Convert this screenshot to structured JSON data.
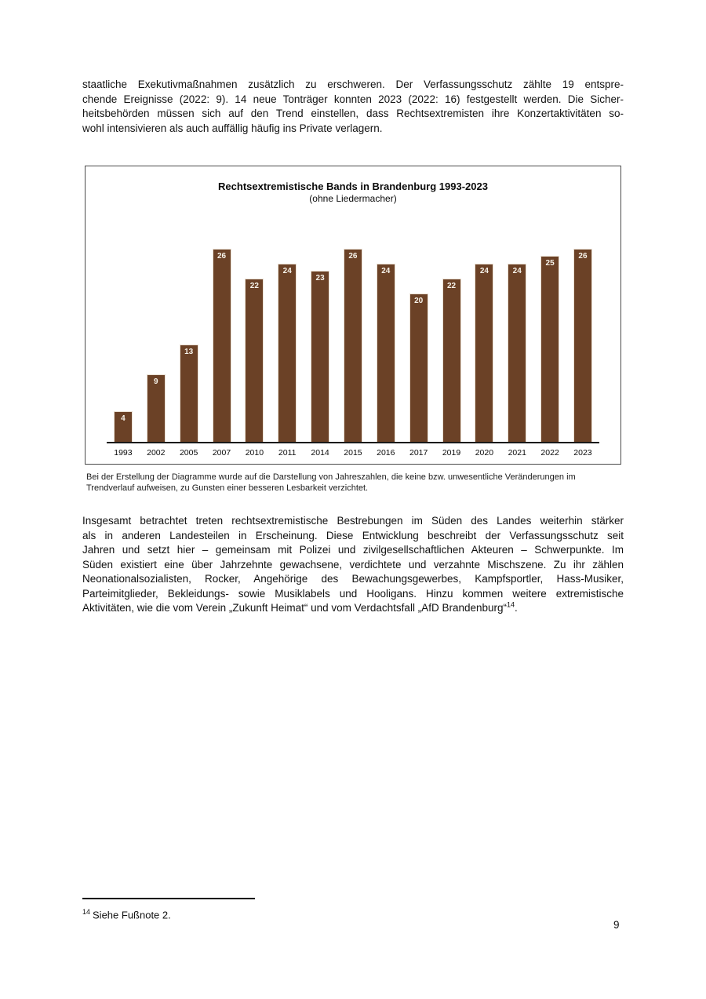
{
  "page": {
    "number": "9",
    "background": "#ffffff"
  },
  "paragraph1": {
    "lines": [
      {
        "pre": "staatliche Exekutivmaßnahmen zusätzlich zu erschweren. Der Verfassungsschutz zählte 19 entspre-"
      },
      {
        "pre": "chende Ereignisse (2022: 9). 14 neue Tonträger konnten 2023 (2022: 16) festgestellt werden. Die Sicher-"
      },
      {
        "pre": "heitsbehörden müssen sich auf den Trend einstellen, dass Rechtsextremisten ihre Konzertaktivitäten so-"
      },
      {
        "pre": "wohl intensivieren als auch auffällig häufig ins Private verlagern."
      }
    ]
  },
  "chart_data": {
    "type": "bar",
    "title": "Rechtsextremistische Bands in Brandenburg 1993-2023",
    "subtitle": "(ohne Liedermacher)",
    "categories": [
      "1993",
      "2002",
      "2005",
      "2007",
      "2010",
      "2011",
      "2014",
      "2015",
      "2016",
      "2017",
      "2019",
      "2020",
      "2021",
      "2022",
      "2023"
    ],
    "values": [
      4,
      9,
      13,
      26,
      22,
      24,
      23,
      26,
      24,
      20,
      22,
      24,
      24,
      25,
      26
    ],
    "xlabel": "",
    "ylabel": "",
    "ylim": [
      0,
      26
    ],
    "grid": false,
    "legend": false,
    "bar_color": "#6B4126",
    "bar_label_color": "#F7F3EA",
    "axis_color": "#1A1A1A"
  },
  "caption": {
    "lines": [
      "Bei der Erstellung der Diagramme wurde auf die Darstellung von Jahreszahlen, die keine bzw. unwesentliche Veränderungen im",
      "Trendverlauf aufweisen, zu Gunsten einer besseren Lesbarkeit verzichtet."
    ]
  },
  "paragraph2": {
    "lines": [
      {
        "pre": "Insgesamt betrachtet treten rechtsextremistische Bestrebungen im Süden des Landes weiterhin stärker"
      },
      {
        "pre": "als in anderen Landesteilen in Erscheinung. Diese Entwicklung beschreibt der Verfassungsschutz seit"
      },
      {
        "pre": "Jahren und setzt hier – gemeinsam mit Polizei und zivilgesellschaftlichen Akteuren – Schwerpunkte. Im"
      },
      {
        "pre": "Süden existiert eine über Jahrzehnte gewachsene, verdichtete und verzahnte Mischszene. Zu ihr zählen"
      },
      {
        "pre": "Neonationalsozialisten, Rocker, Angehörige des Bewachungsgewerbes, Kampfsportler, Hass-Musiker,"
      },
      {
        "pre": "Parteimitglieder, Bekleidungs- sowie Musiklabels und Hooligans. Hinzu kommen weitere extremistische"
      },
      {
        "pre": "Aktivitäten, wie die vom Verein „Zukunft Heimat“ und vom Verdachtsfall „AfD Brandenburg“",
        "sup": "14",
        "post": "."
      }
    ]
  },
  "footnote": {
    "marker": "14",
    "text": "Siehe Fußnote 2."
  }
}
